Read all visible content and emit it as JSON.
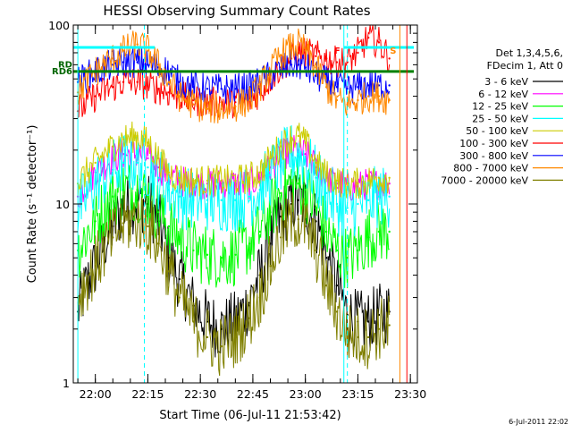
{
  "chart_data": {
    "type": "line",
    "title": "HESSI Observing Summary Count Rates",
    "xlabel": "Start Time (06-Jul-11 21:53:42)",
    "ylabel": "Count Rate (s⁻¹ detector⁻¹)",
    "yscale": "log",
    "ylim": [
      1,
      100
    ],
    "xlim": [
      "21:53:42",
      "23:32:00"
    ],
    "x_tick_labels": [
      "22:00",
      "22:15",
      "22:30",
      "22:45",
      "23:00",
      "23:15",
      "23:30"
    ],
    "y_tick_labels": [
      "1",
      "10",
      "100"
    ],
    "legend_header": [
      "Det 1,3,4,5,6,",
      "FDecim 1, Att 0"
    ],
    "legend_placement": "right",
    "timestamp": "6-Jul-2011 22:02",
    "flags": [
      {
        "label": "RD6",
        "y": 55,
        "color": "#006600"
      },
      {
        "label": "RD",
        "y": 60,
        "color": "#006600"
      }
    ],
    "markers": [
      {
        "label": "F",
        "time": "23:11",
        "color": "#ff0000"
      },
      {
        "label": "S",
        "time": "23:27",
        "color": "#ff8800"
      }
    ],
    "series": [
      {
        "name": "3 - 6 keV",
        "color": "#000000",
        "x": [
          "21:55",
          "22:00",
          "22:05",
          "22:08",
          "22:12",
          "22:15",
          "22:18",
          "22:21",
          "22:24",
          "22:28",
          "22:32",
          "22:36",
          "22:40",
          "22:44",
          "22:47",
          "22:50",
          "22:53",
          "22:56",
          "22:58",
          "23:00",
          "23:03",
          "23:06",
          "23:09",
          "23:12",
          "23:15",
          "23:18",
          "23:21",
          "23:24"
        ],
        "y": [
          2.5,
          4.5,
          7.5,
          9.5,
          10.5,
          10,
          8,
          5,
          3.8,
          2.7,
          2.2,
          2.0,
          2.2,
          2.8,
          4,
          6,
          8.5,
          10,
          10.5,
          10,
          8,
          5,
          3.5,
          2.4,
          2.2,
          2.2,
          2.4,
          2.5
        ]
      },
      {
        "name": "6 - 12 keV",
        "color": "#ff00ff",
        "x": [
          "21:55",
          "22:00",
          "22:05",
          "22:08",
          "22:12",
          "22:15",
          "22:18",
          "22:21",
          "22:24",
          "22:28",
          "22:32",
          "22:36",
          "22:40",
          "22:44",
          "22:47",
          "22:50",
          "22:53",
          "22:56",
          "22:58",
          "23:00",
          "23:03",
          "23:06",
          "23:09",
          "23:12",
          "23:15",
          "23:18",
          "23:21",
          "23:24"
        ],
        "y": [
          11,
          15,
          18,
          19,
          19,
          18,
          16,
          14.5,
          13.5,
          13,
          13,
          13,
          13,
          13,
          14,
          16,
          18.5,
          20,
          20,
          19,
          16,
          14,
          13,
          12.5,
          12.5,
          13,
          13,
          13
        ]
      },
      {
        "name": "12 - 25 keV",
        "color": "#00ff00",
        "x": [
          "21:55",
          "22:00",
          "22:05",
          "22:08",
          "22:12",
          "22:15",
          "22:18",
          "22:21",
          "22:24",
          "22:28",
          "22:32",
          "22:36",
          "22:40",
          "22:44",
          "22:47",
          "22:50",
          "22:53",
          "22:56",
          "22:58",
          "23:00",
          "23:03",
          "23:06",
          "23:09",
          "23:12",
          "23:15",
          "23:18",
          "23:21",
          "23:24"
        ],
        "y": [
          5.5,
          8,
          11,
          12,
          12,
          11,
          9,
          7.5,
          6.5,
          5.5,
          5.2,
          5.0,
          5.2,
          6,
          7,
          9,
          11.5,
          13,
          13,
          12,
          9.5,
          7,
          5.5,
          5,
          5.5,
          6.5,
          7,
          7
        ]
      },
      {
        "name": "25 - 50 keV",
        "color": "#00ffff",
        "x": [
          "21:55",
          "22:00",
          "22:05",
          "22:08",
          "22:12",
          "22:15",
          "22:18",
          "22:21",
          "22:24",
          "22:28",
          "22:32",
          "22:36",
          "22:40",
          "22:44",
          "22:47",
          "22:50",
          "22:53",
          "22:56",
          "22:58",
          "23:00",
          "23:03",
          "23:06",
          "23:09",
          "23:12",
          "23:15",
          "23:18",
          "23:21",
          "23:24"
        ],
        "y": [
          9,
          13,
          15.5,
          17,
          17,
          16,
          14,
          12,
          11,
          10.5,
          10.5,
          10.5,
          10.5,
          11,
          12,
          14.5,
          17,
          19,
          19,
          17.5,
          14,
          11.5,
          10,
          9.5,
          10,
          10.5,
          11,
          11
        ]
      },
      {
        "name": "50 - 100 keV",
        "color": "#cccc00",
        "x": [
          "21:55",
          "22:00",
          "22:05",
          "22:08",
          "22:12",
          "22:15",
          "22:18",
          "22:21",
          "22:24",
          "22:28",
          "22:32",
          "22:36",
          "22:40",
          "22:44",
          "22:47",
          "22:50",
          "22:53",
          "22:56",
          "22:58",
          "23:00",
          "23:03",
          "23:06",
          "23:09",
          "23:12",
          "23:15",
          "23:18",
          "23:21",
          "23:24"
        ],
        "y": [
          13,
          17,
          21,
          23,
          24,
          22,
          18,
          15,
          14,
          13.5,
          13.5,
          13.5,
          13.5,
          14,
          15,
          18,
          21,
          23.5,
          24,
          22,
          17,
          14.5,
          13.5,
          13,
          13,
          13.5,
          14,
          14
        ]
      },
      {
        "name": "100 - 300 keV",
        "color": "#ff0000",
        "x": [
          "21:55",
          "22:00",
          "22:05",
          "22:08",
          "22:12",
          "22:15",
          "22:18",
          "22:21",
          "22:24",
          "22:28",
          "22:32",
          "22:36",
          "22:40",
          "22:44",
          "22:47",
          "22:50",
          "22:53",
          "22:56",
          "22:58",
          "23:00",
          "23:03",
          "23:06",
          "23:09",
          "23:12",
          "23:15",
          "23:18",
          "23:21",
          "23:24"
        ],
        "y": [
          33,
          40,
          45,
          48,
          48,
          46,
          44,
          42,
          40,
          38,
          37,
          37,
          37,
          38,
          42,
          50,
          58,
          65,
          70,
          70,
          67,
          65,
          62,
          62,
          70,
          85,
          80,
          65
        ]
      },
      {
        "name": "300 - 800 keV",
        "color": "#0000ff",
        "x": [
          "21:55",
          "22:00",
          "22:05",
          "22:08",
          "22:12",
          "22:15",
          "22:18",
          "22:21",
          "22:24",
          "22:28",
          "22:32",
          "22:36",
          "22:40",
          "22:44",
          "22:47",
          "22:50",
          "22:53",
          "22:56",
          "22:58",
          "23:00",
          "23:03",
          "23:06",
          "23:09",
          "23:12",
          "23:15",
          "23:18",
          "23:21",
          "23:24"
        ],
        "y": [
          48,
          55,
          60,
          62,
          62,
          60,
          58,
          55,
          48,
          45,
          44,
          44,
          44,
          45,
          48,
          52,
          56,
          60,
          60,
          58,
          52,
          48,
          45,
          44,
          45,
          46,
          46,
          46
        ]
      },
      {
        "name": "800 - 7000 keV",
        "color": "#ff8800",
        "x": [
          "21:55",
          "22:00",
          "22:05",
          "22:08",
          "22:12",
          "22:15",
          "22:18",
          "22:21",
          "22:24",
          "22:28",
          "22:32",
          "22:36",
          "22:40",
          "22:44",
          "22:47",
          "22:50",
          "22:53",
          "22:56",
          "22:58",
          "23:00",
          "23:03",
          "23:06",
          "23:09",
          "23:12",
          "23:15",
          "23:18",
          "23:21",
          "23:24"
        ],
        "y": [
          42,
          55,
          65,
          72,
          78,
          72,
          60,
          48,
          40,
          36,
          34,
          34,
          35,
          38,
          45,
          55,
          68,
          75,
          78,
          72,
          58,
          45,
          38,
          36,
          38,
          40,
          40,
          38
        ]
      },
      {
        "name": "7000 - 20000 keV",
        "color": "#808000",
        "x": [
          "21:55",
          "22:00",
          "22:05",
          "22:08",
          "22:12",
          "22:15",
          "22:18",
          "22:21",
          "22:24",
          "22:28",
          "22:32",
          "22:36",
          "22:40",
          "22:44",
          "22:47",
          "22:50",
          "22:53",
          "22:56",
          "22:58",
          "23:00",
          "23:03",
          "23:06",
          "23:09",
          "23:12",
          "23:15",
          "23:18",
          "23:21",
          "23:24"
        ],
        "y": [
          3,
          4.5,
          6.5,
          7.8,
          8.2,
          7.5,
          6,
          4.2,
          3,
          2.2,
          1.8,
          1.6,
          1.8,
          2.3,
          3,
          4.5,
          6.5,
          8,
          8.2,
          7.5,
          5.5,
          3.5,
          2.5,
          1.9,
          1.8,
          1.8,
          2,
          2.1
        ]
      }
    ],
    "overlays": [
      {
        "label": "saa-flag-cyan",
        "color": "#00ffff",
        "y": 75,
        "segments": [
          [
            "21:53:42",
            "22:17"
          ],
          [
            "23:11",
            "23:31"
          ]
        ]
      },
      {
        "label": "night-flag-green",
        "color": "#008000",
        "y": 55,
        "segments": [
          [
            "21:53:42",
            "23:31"
          ]
        ]
      }
    ],
    "vlines": [
      {
        "time": "21:55",
        "color": "#00ffff",
        "style": "solid"
      },
      {
        "time": "22:14",
        "color": "#00ffff",
        "style": "dashed"
      },
      {
        "time": "23:11",
        "color": "#00ffff",
        "style": "solid"
      },
      {
        "time": "23:12",
        "color": "#00ffff",
        "style": "dashed"
      },
      {
        "time": "23:27",
        "color": "#ff8800",
        "style": "solid"
      },
      {
        "time": "23:29",
        "color": "#ff0000",
        "style": "solid"
      }
    ]
  }
}
